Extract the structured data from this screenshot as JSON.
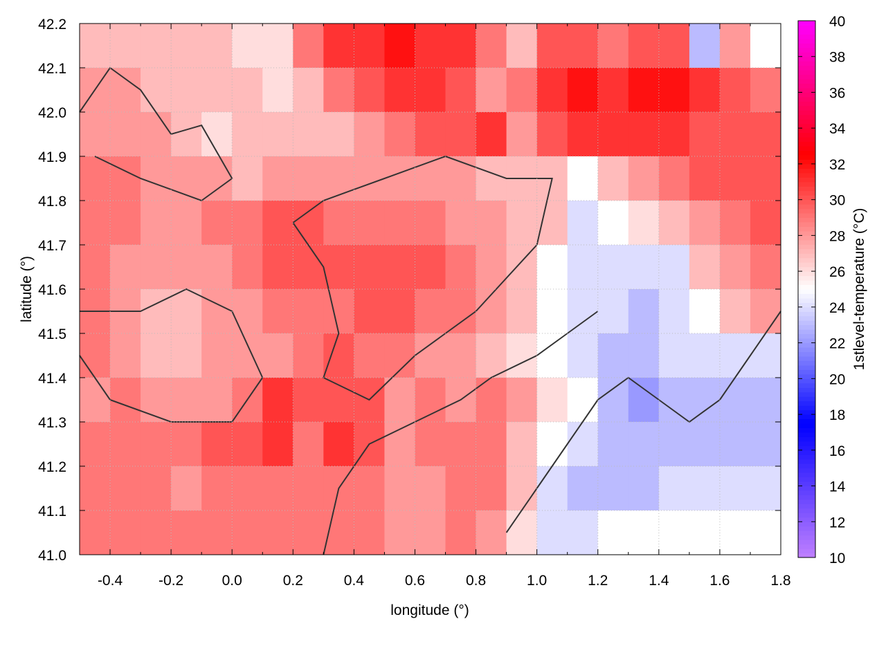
{
  "chart_data": {
    "type": "heatmap",
    "xlabel": "longitude (°)",
    "ylabel": "latitude (°)",
    "colorbar_label": "1stlevel-temperature (°C)",
    "xlim": [
      -0.5,
      1.8
    ],
    "ylim": [
      41.0,
      42.2
    ],
    "clim": [
      10,
      40
    ],
    "grid": true,
    "xticks": [
      "-0.4",
      "-0.2",
      "0.0",
      "0.2",
      "0.4",
      "0.6",
      "0.8",
      "1.0",
      "1.2",
      "1.4",
      "1.6",
      "1.8"
    ],
    "xtick_values": [
      -0.4,
      -0.2,
      0.0,
      0.2,
      0.4,
      0.6,
      0.8,
      1.0,
      1.2,
      1.4,
      1.6,
      1.8
    ],
    "yticks": [
      "41.0",
      "41.1",
      "41.2",
      "41.3",
      "41.4",
      "41.5",
      "41.6",
      "41.7",
      "41.8",
      "41.9",
      "42.0",
      "42.1",
      "42.2"
    ],
    "ytick_values": [
      41.0,
      41.1,
      41.2,
      41.3,
      41.4,
      41.5,
      41.6,
      41.7,
      41.8,
      41.9,
      42.0,
      42.1,
      42.2
    ],
    "cticks": [
      "10",
      "12",
      "14",
      "16",
      "18",
      "20",
      "22",
      "24",
      "26",
      "28",
      "30",
      "32",
      "34",
      "36",
      "38",
      "40"
    ],
    "ctick_values": [
      10,
      12,
      14,
      16,
      18,
      20,
      22,
      24,
      26,
      28,
      30,
      32,
      34,
      36,
      38,
      40
    ],
    "palette": [
      [
        10,
        "#c080ff"
      ],
      [
        17.5,
        "#0000ff"
      ],
      [
        25,
        "#ffffff"
      ],
      [
        32.5,
        "#ff0000"
      ],
      [
        40,
        "#ff00ff"
      ]
    ],
    "lon": [
      -0.45,
      -0.35,
      -0.25,
      -0.15,
      -0.05,
      0.05,
      0.15,
      0.25,
      0.35,
      0.45,
      0.55,
      0.65,
      0.75,
      0.85,
      0.95,
      1.05,
      1.15,
      1.25,
      1.35,
      1.45,
      1.55,
      1.65,
      1.75
    ],
    "lat": [
      42.15,
      42.05,
      41.95,
      41.85,
      41.75,
      41.65,
      41.55,
      41.45,
      41.35,
      41.25,
      41.15,
      41.05
    ],
    "values": [
      [
        27,
        27,
        27,
        27,
        27,
        26,
        26,
        29,
        31,
        31,
        32,
        31,
        31,
        29,
        27,
        30,
        30,
        29,
        30,
        30,
        23,
        28,
        25
      ],
      [
        28,
        28,
        27,
        27,
        27,
        27,
        26,
        27,
        29,
        30,
        31,
        31,
        30,
        28,
        29,
        31,
        32,
        31,
        32,
        32,
        31,
        30,
        29
      ],
      [
        28,
        28,
        28,
        27,
        26,
        27,
        27,
        27,
        27,
        28,
        29,
        30,
        30,
        31,
        28,
        30,
        31,
        31,
        31,
        31,
        30,
        30,
        30
      ],
      [
        29,
        29,
        28,
        28,
        28,
        27,
        28,
        28,
        28,
        28,
        28,
        28,
        28,
        27,
        27,
        27,
        25,
        27,
        28,
        29,
        30,
        30,
        30
      ],
      [
        29,
        29,
        28,
        28,
        29,
        29,
        30,
        30,
        29,
        29,
        29,
        29,
        28,
        28,
        27,
        27,
        24,
        25,
        26,
        27,
        28,
        29,
        30
      ],
      [
        29,
        28,
        28,
        28,
        28,
        29,
        30,
        30,
        30,
        30,
        30,
        30,
        29,
        28,
        27,
        25,
        24,
        24,
        24,
        24,
        27,
        28,
        29
      ],
      [
        29,
        28,
        27,
        27,
        28,
        28,
        29,
        29,
        29,
        30,
        30,
        29,
        29,
        28,
        27,
        25,
        24,
        24,
        23,
        24,
        25,
        27,
        28
      ],
      [
        29,
        28,
        27,
        27,
        28,
        28,
        28,
        29,
        30,
        29,
        29,
        28,
        28,
        27,
        26,
        25,
        24,
        23,
        23,
        24,
        24,
        24,
        24
      ],
      [
        28,
        29,
        28,
        28,
        28,
        29,
        31,
        30,
        30,
        30,
        28,
        29,
        28,
        29,
        28,
        26,
        25,
        23,
        22,
        23,
        23,
        23,
        23
      ],
      [
        29,
        29,
        29,
        29,
        30,
        30,
        31,
        29,
        31,
        30,
        28,
        29,
        29,
        29,
        27,
        25,
        24,
        23,
        23,
        23,
        23,
        23,
        23
      ],
      [
        29,
        29,
        29,
        28,
        29,
        29,
        29,
        29,
        29,
        29,
        28,
        28,
        29,
        29,
        27,
        24,
        23,
        23,
        23,
        24,
        24,
        24,
        24
      ],
      [
        29,
        29,
        29,
        29,
        29,
        29,
        29,
        29,
        29,
        29,
        28,
        28,
        29,
        28,
        26,
        24,
        24,
        25,
        25,
        25,
        25,
        25,
        25
      ]
    ],
    "contours": [
      [
        [
          -0.5,
          42.0
        ],
        [
          -0.4,
          42.1
        ],
        [
          -0.3,
          42.05
        ],
        [
          -0.2,
          41.95
        ],
        [
          -0.1,
          41.97
        ],
        [
          0.0,
          41.85
        ],
        [
          -0.1,
          41.8
        ],
        [
          -0.3,
          41.85
        ],
        [
          -0.45,
          41.9
        ]
      ],
      [
        [
          0.2,
          41.75
        ],
        [
          0.3,
          41.65
        ],
        [
          0.35,
          41.5
        ],
        [
          0.3,
          41.4
        ],
        [
          0.45,
          41.35
        ],
        [
          0.6,
          41.45
        ],
        [
          0.8,
          41.55
        ],
        [
          1.0,
          41.7
        ],
        [
          1.05,
          41.85
        ],
        [
          0.9,
          41.85
        ],
        [
          0.7,
          41.9
        ],
        [
          0.5,
          41.85
        ],
        [
          0.3,
          41.8
        ],
        [
          0.2,
          41.75
        ]
      ],
      [
        [
          -0.5,
          41.55
        ],
        [
          -0.3,
          41.55
        ],
        [
          -0.15,
          41.6
        ],
        [
          0.0,
          41.55
        ],
        [
          0.1,
          41.4
        ],
        [
          0.0,
          41.3
        ],
        [
          -0.2,
          41.3
        ],
        [
          -0.4,
          41.35
        ],
        [
          -0.5,
          41.45
        ]
      ],
      [
        [
          0.9,
          41.05
        ],
        [
          1.0,
          41.15
        ],
        [
          1.1,
          41.25
        ],
        [
          1.2,
          41.35
        ],
        [
          1.3,
          41.4
        ],
        [
          1.4,
          41.35
        ],
        [
          1.5,
          41.3
        ],
        [
          1.6,
          41.35
        ],
        [
          1.7,
          41.45
        ],
        [
          1.8,
          41.55
        ]
      ],
      [
        [
          0.3,
          41.0
        ],
        [
          0.35,
          41.15
        ],
        [
          0.45,
          41.25
        ],
        [
          0.6,
          41.3
        ],
        [
          0.75,
          41.35
        ],
        [
          0.85,
          41.4
        ],
        [
          1.0,
          41.45
        ],
        [
          1.1,
          41.5
        ],
        [
          1.2,
          41.55
        ]
      ]
    ]
  }
}
